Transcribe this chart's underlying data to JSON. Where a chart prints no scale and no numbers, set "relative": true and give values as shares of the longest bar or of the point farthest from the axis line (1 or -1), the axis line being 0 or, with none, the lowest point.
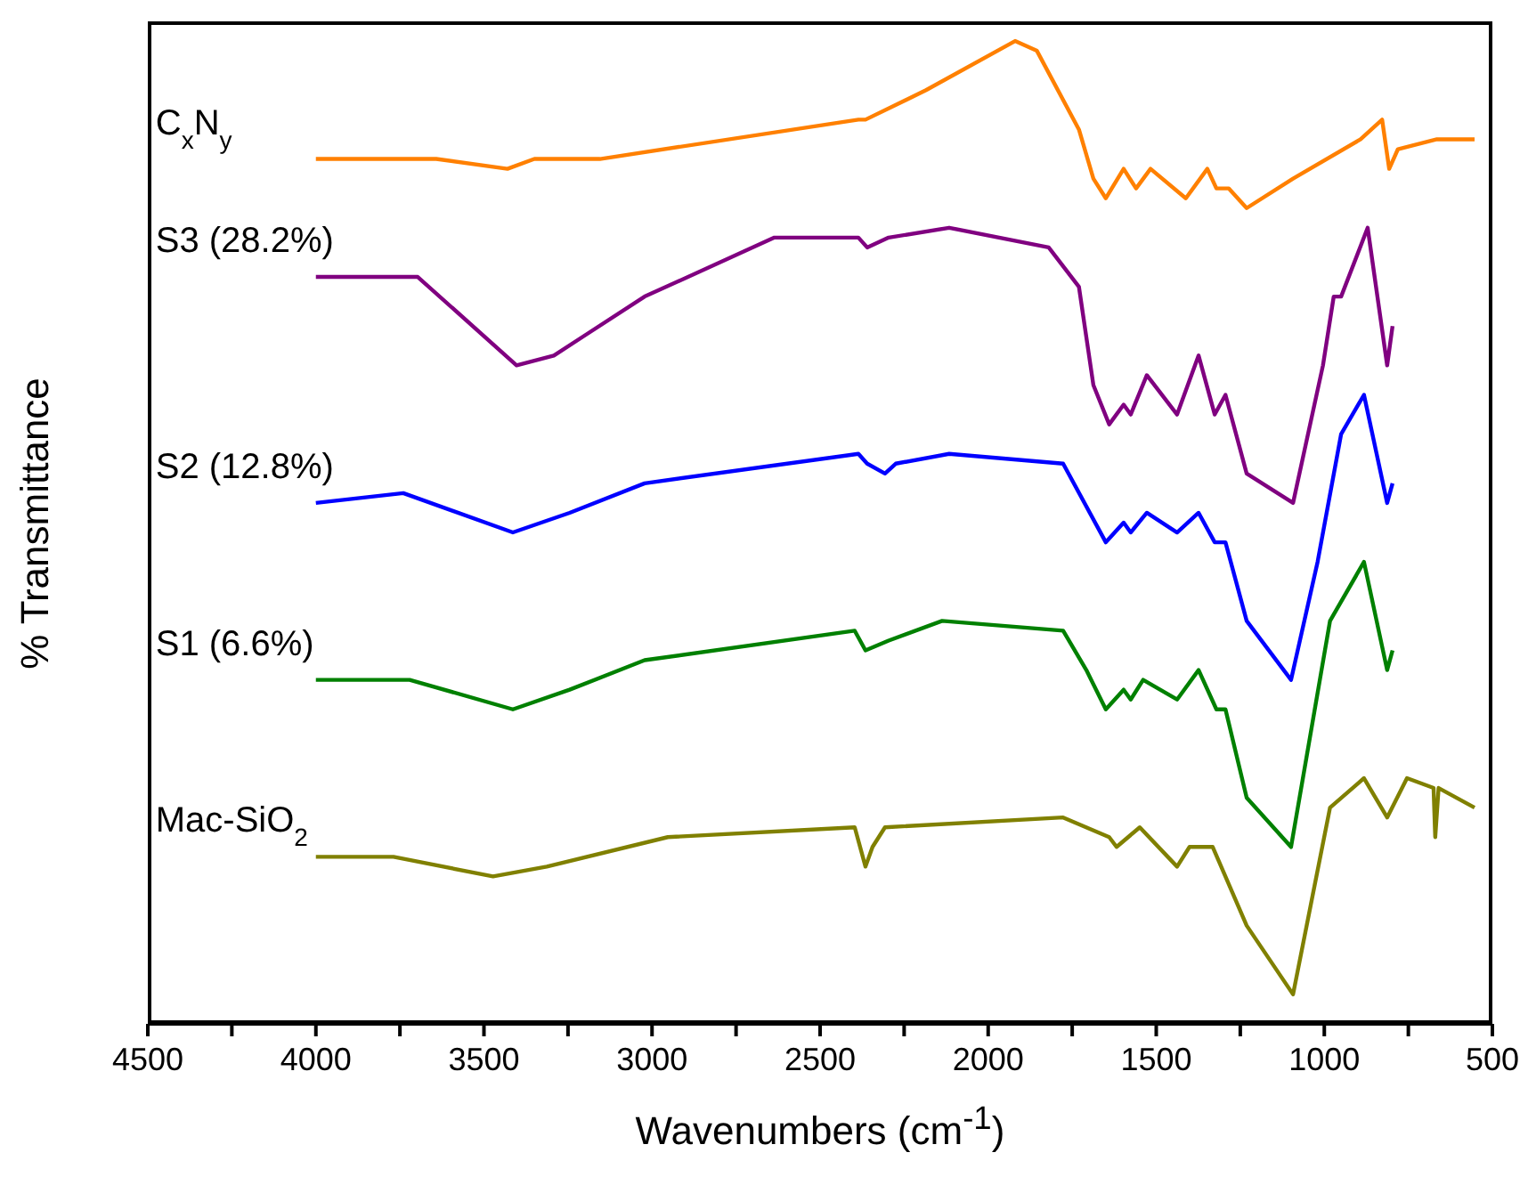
{
  "chart_data": {
    "type": "line",
    "relative": true,
    "xlabel": "Wavenumbers (cm$^{-1}$)",
    "ylabel": "% Transmittance",
    "xlim": [
      4500,
      500
    ],
    "xticks": [
      4500,
      {
        "value": 4250,
        "label": null
      },
      4000,
      {
        "value": 3750,
        "label": null
      },
      3500,
      {
        "value": 3250,
        "label": null
      },
      3000,
      {
        "value": 2750,
        "label": null
      },
      2500,
      {
        "value": 2250,
        "label": null
      },
      2000,
      {
        "value": 1750,
        "label": null
      },
      1500,
      {
        "value": 1250,
        "label": null
      },
      1000,
      {
        "value": 750,
        "label": null
      },
      500
    ],
    "grid": false,
    "legend": false,
    "marker": "none",
    "line_style": "solid",
    "series": [
      {
        "name": "C$_{x}$N$_{y}$",
        "color": "#ff8000",
        "x": [
          4000,
          3642,
          3430,
          3350,
          3155,
          2386,
          2365,
          2185,
          1920,
          1855,
          1730,
          1687,
          1650,
          1597,
          1560,
          1517,
          1412,
          1348,
          1321,
          1284,
          1231,
          1093,
          892,
          828,
          807,
          781,
          665,
          553
        ],
        "values": [
          0.88,
          0.88,
          0.87,
          0.88,
          0.88,
          0.92,
          0.92,
          0.95,
          1,
          0.99,
          0.91,
          0.86,
          0.84,
          0.87,
          0.85,
          0.87,
          0.84,
          0.87,
          0.85,
          0.85,
          0.83,
          0.86,
          0.9,
          0.92,
          0.87,
          0.89,
          0.9,
          0.9
        ]
      },
      {
        "name": "S3 (28.2%)",
        "color": "#800080",
        "x": [
          4000,
          3740,
          3697,
          3403,
          3292,
          3202,
          3022,
          2636,
          2386,
          2360,
          2296,
          2116,
          1820,
          1730,
          1687,
          1640,
          1597,
          1576,
          1528,
          1438,
          1374,
          1326,
          1294,
          1231,
          1093,
          1004,
          972,
          950,
          871,
          813,
          797
        ],
        "values": [
          0.76,
          0.76,
          0.76,
          0.67,
          0.68,
          0.7,
          0.74,
          0.8,
          0.8,
          0.79,
          0.8,
          0.81,
          0.79,
          0.75,
          0.65,
          0.61,
          0.63,
          0.62,
          0.66,
          0.62,
          0.68,
          0.62,
          0.64,
          0.56,
          0.53,
          0.67,
          0.74,
          0.74,
          0.81,
          0.67,
          0.71
        ]
      },
      {
        "name": "S2 (12.8%)",
        "color": "#0000ff",
        "x": [
          4000,
          3740,
          3414,
          3245,
          3022,
          2386,
          2360,
          2307,
          2275,
          2116,
          1777,
          1650,
          1597,
          1576,
          1528,
          1438,
          1374,
          1326,
          1294,
          1231,
          1099,
          1020,
          950,
          882,
          813,
          797
        ],
        "values": [
          0.53,
          0.54,
          0.5,
          0.52,
          0.55,
          0.58,
          0.57,
          0.56,
          0.57,
          0.58,
          0.57,
          0.49,
          0.51,
          0.5,
          0.52,
          0.5,
          0.52,
          0.49,
          0.49,
          0.41,
          0.35,
          0.47,
          0.6,
          0.64,
          0.53,
          0.55
        ]
      },
      {
        "name": "S1 (6.6%)",
        "color": "#008000",
        "x": [
          4000,
          3721,
          3414,
          3245,
          3022,
          2397,
          2365,
          2296,
          2137,
          1777,
          1708,
          1650,
          1597,
          1576,
          1539,
          1438,
          1374,
          1321,
          1294,
          1231,
          1099,
          983,
          882,
          813,
          797
        ],
        "values": [
          0.35,
          0.35,
          0.32,
          0.34,
          0.37,
          0.4,
          0.38,
          0.39,
          0.41,
          0.4,
          0.36,
          0.32,
          0.34,
          0.33,
          0.35,
          0.33,
          0.36,
          0.32,
          0.32,
          0.23,
          0.18,
          0.41,
          0.47,
          0.36,
          0.38
        ]
      },
      {
        "name": "Mac-SiO$_{2}$",
        "color": "#808000",
        "x": [
          4000,
          3769,
          3473,
          3313,
          2953,
          2397,
          2365,
          2344,
          2307,
          1777,
          1640,
          1618,
          1549,
          1438,
          1401,
          1332,
          1231,
          1093,
          983,
          882,
          813,
          754,
          675,
          670,
          660,
          553
        ],
        "values": [
          0.17,
          0.17,
          0.15,
          0.16,
          0.19,
          0.2,
          0.16,
          0.18,
          0.2,
          0.21,
          0.19,
          0.18,
          0.2,
          0.16,
          0.18,
          0.18,
          0.1,
          0.03,
          0.22,
          0.25,
          0.21,
          0.25,
          0.24,
          0.19,
          0.24,
          0.22
        ]
      }
    ]
  }
}
